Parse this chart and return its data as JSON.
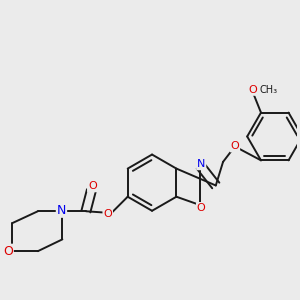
{
  "background_color": "#ebebeb",
  "bond_color": "#1a1a1a",
  "bond_width": 1.4,
  "atom_colors": {
    "N": "#0000ee",
    "O": "#dd0000"
  },
  "font_size": 9,
  "fig_size": [
    3.0,
    3.0
  ],
  "dpi": 100,
  "xlim": [
    -0.75,
    0.85
  ],
  "ylim": [
    -0.72,
    0.72
  ]
}
